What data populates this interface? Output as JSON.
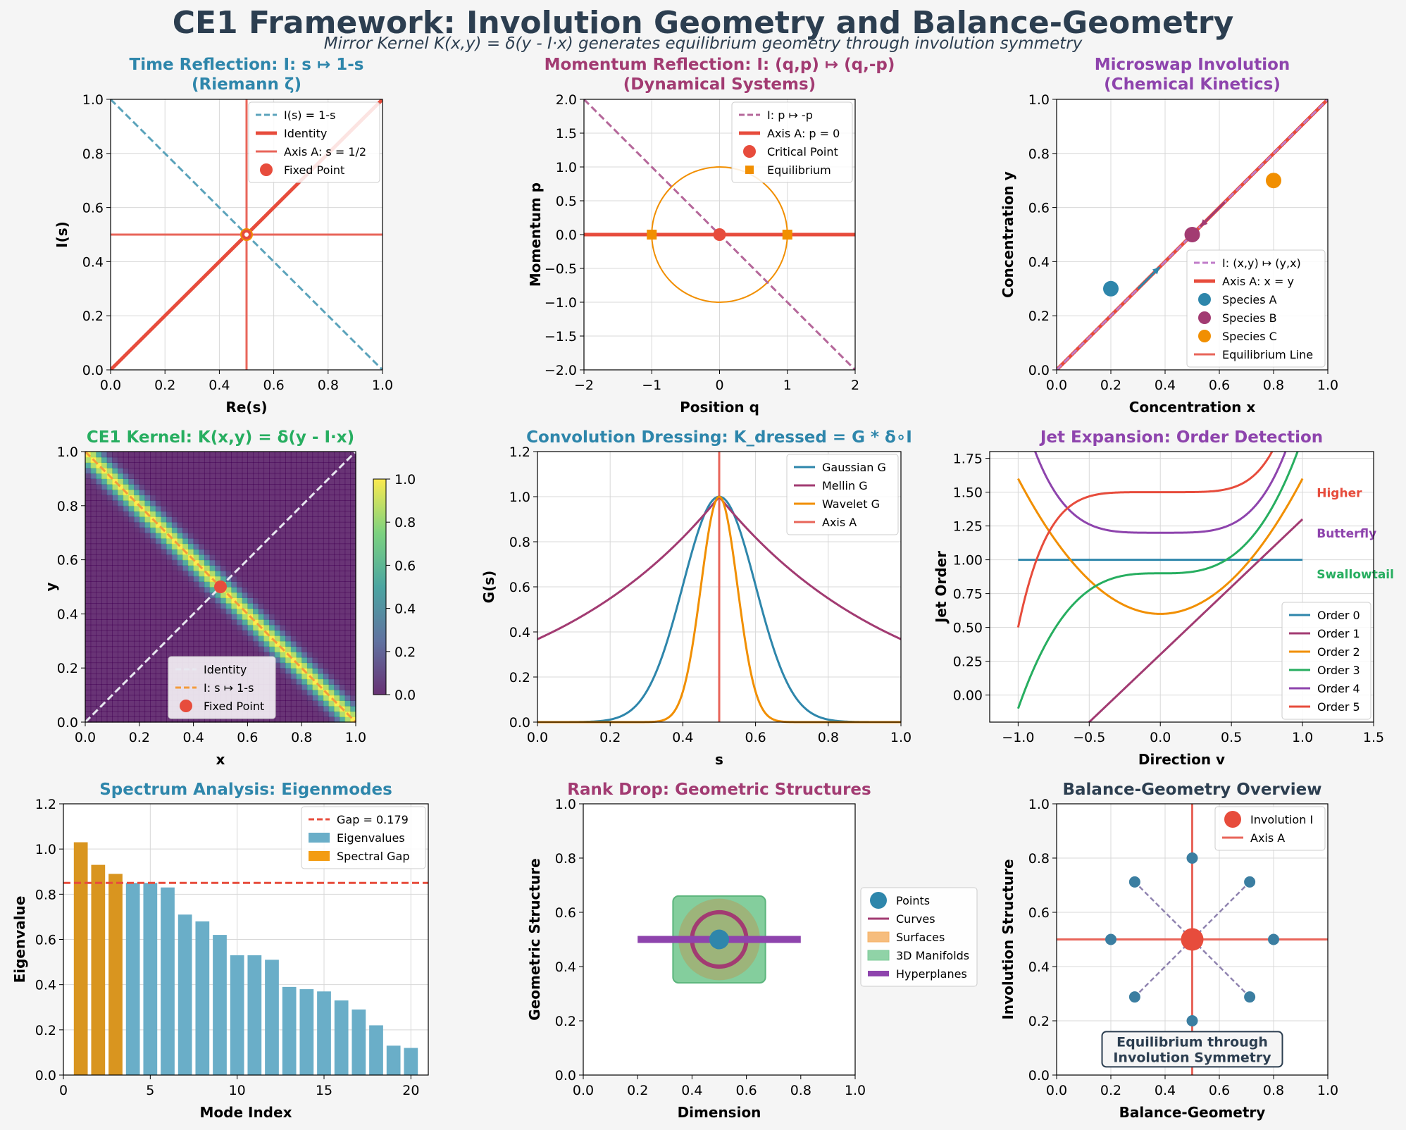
{
  "figure": {
    "title": "CE1 Framework: Involution Geometry and Balance-Geometry",
    "subtitle": "Mirror Kernel K(x,y) = δ(y - I·x) generates equilibrium geometry through involution symmetry",
    "title_color": "#2c3e50"
  },
  "chart_data": [
    {
      "id": "p1",
      "type": "line",
      "title": [
        "Time Reflection: I: s ↦ 1-s",
        "(Riemann ζ)"
      ],
      "title_color": "#2e86ab",
      "xlabel": "Re(s)",
      "ylabel": "I(s)",
      "xlim": [
        0,
        1
      ],
      "ylim": [
        0,
        1
      ],
      "xticks": [
        "0.0",
        "0.2",
        "0.4",
        "0.6",
        "0.8",
        "1.0"
      ],
      "yticks": [
        "0.0",
        "0.2",
        "0.4",
        "0.6",
        "0.8",
        "1.0"
      ],
      "grid": true,
      "legend_position": "upper right",
      "series": [
        {
          "name": "I(s) = 1-s",
          "x": [
            0,
            1
          ],
          "y": [
            1,
            0
          ],
          "color": "#5ba3bb",
          "style": "dashed"
        },
        {
          "name": "Identity",
          "x": [
            0,
            1
          ],
          "y": [
            0,
            1
          ],
          "color": "#e74c3c",
          "style": "solid-thick"
        },
        {
          "name": "Axis A: s = 1/2",
          "x": [
            0.5
          ],
          "y": [
            0.5
          ],
          "color": "#e8655a",
          "style": "crosshair"
        },
        {
          "name": "Fixed Point",
          "x": [
            0.5
          ],
          "y": [
            0.5
          ],
          "color": "#e74c3c",
          "style": "marker"
        }
      ]
    },
    {
      "id": "p2",
      "type": "line",
      "title": [
        "Momentum Reflection: I: (q,p) ↦ (q,-p)",
        "(Dynamical Systems)"
      ],
      "title_color": "#a23b72",
      "xlabel": "Position q",
      "ylabel": "Momentum p",
      "xlim": [
        -2,
        2
      ],
      "ylim": [
        -2,
        2
      ],
      "xticks": [
        "−2",
        "−1",
        "0",
        "1",
        "2"
      ],
      "yticks": [
        "−2.0",
        "−1.5",
        "−1.0",
        "−0.5",
        "0.0",
        "0.5",
        "1.0",
        "1.5",
        "2.0"
      ],
      "grid": true,
      "legend_position": "upper right",
      "series": [
        {
          "name": "I: p ↦ -p",
          "x": [
            -2,
            2
          ],
          "y": [
            2,
            -2
          ],
          "color": "#b5679a",
          "style": "dashed"
        },
        {
          "name": "Axis A: p = 0",
          "x": [
            -2,
            2
          ],
          "y": [
            0,
            0
          ],
          "color": "#e74c3c",
          "style": "solid-thick"
        },
        {
          "name": "Critical Point",
          "x": [
            0
          ],
          "y": [
            0
          ],
          "color": "#e74c3c",
          "style": "circle-marker"
        },
        {
          "name": "Equilibrium",
          "x": [
            -1,
            1
          ],
          "y": [
            0,
            0
          ],
          "color": "#f18f01",
          "style": "square-marker"
        }
      ],
      "circle": {
        "center": [
          0,
          0
        ],
        "radius": 1,
        "color": "#f18f01"
      }
    },
    {
      "id": "p3",
      "type": "scatter",
      "title": [
        "Microswap Involution",
        "(Chemical Kinetics)"
      ],
      "title_color": "#8e44ad",
      "xlabel": "Concentration x",
      "ylabel": "Concentration y",
      "xlim": [
        0,
        1
      ],
      "ylim": [
        0,
        1
      ],
      "xticks": [
        "0.0",
        "0.2",
        "0.4",
        "0.6",
        "0.8",
        "1.0"
      ],
      "yticks": [
        "0.0",
        "0.2",
        "0.4",
        "0.6",
        "0.8",
        "1.0"
      ],
      "grid": true,
      "legend_position": "lower right",
      "series": [
        {
          "name": "I: (x,y) ↦ (y,x)",
          "x": [
            0,
            1
          ],
          "y": [
            0,
            1
          ],
          "color": "#c07cc9",
          "style": "dashed"
        },
        {
          "name": "Axis A: x = y",
          "x": [
            0,
            1
          ],
          "y": [
            0,
            1
          ],
          "color": "#e74c3c",
          "style": "solid-thick"
        },
        {
          "name": "Species A",
          "x": [
            0.2
          ],
          "y": [
            0.3
          ],
          "color": "#2e86ab",
          "style": "marker"
        },
        {
          "name": "Species B",
          "x": [
            0.5
          ],
          "y": [
            0.5
          ],
          "color": "#a23b72",
          "style": "marker"
        },
        {
          "name": "Species C",
          "x": [
            0.8
          ],
          "y": [
            0.7
          ],
          "color": "#f18f01",
          "style": "marker"
        },
        {
          "name": "Equilibrium Line",
          "x": [
            0,
            1
          ],
          "y": [
            0,
            1
          ],
          "color": "#e8655a",
          "style": "solid"
        }
      ],
      "arrows": [
        {
          "from": [
            0.3,
            0.3
          ],
          "to": [
            0.38,
            0.38
          ],
          "color": "#2e86ab"
        },
        {
          "from": [
            0.62,
            0.62
          ],
          "to": [
            0.53,
            0.53
          ],
          "color": "#a23b72"
        }
      ]
    },
    {
      "id": "p4",
      "type": "heatmap",
      "title": [
        "CE1 Kernel: K(x,y) = δ(y - I·x)"
      ],
      "title_color": "#27ae60",
      "xlabel": "x",
      "ylabel": "y",
      "xlim": [
        0,
        1
      ],
      "ylim": [
        0,
        1
      ],
      "xticks": [
        "0.0",
        "0.2",
        "0.4",
        "0.6",
        "0.8",
        "1.0"
      ],
      "yticks": [
        "0.0",
        "0.2",
        "0.4",
        "0.6",
        "0.8",
        "1.0"
      ],
      "colorbar_ticks": [
        "0.0",
        "0.2",
        "0.4",
        "0.6",
        "0.8",
        "1.0"
      ],
      "kernel": "exp(-((y-(1-x))/0.05)^2)",
      "legend_position": "lower center",
      "series": [
        {
          "name": "Identity",
          "x": [
            0,
            1
          ],
          "y": [
            0,
            1
          ],
          "color": "#e8e8f0",
          "style": "dashed"
        },
        {
          "name": "I: s ↦ 1-s",
          "x": [
            0,
            1
          ],
          "y": [
            1,
            0
          ],
          "color": "#f39c3c",
          "style": "dashed"
        },
        {
          "name": "Fixed Point",
          "x": [
            0.5
          ],
          "y": [
            0.5
          ],
          "color": "#e74c3c",
          "style": "marker"
        }
      ]
    },
    {
      "id": "p5",
      "type": "line",
      "title": [
        "Convolution Dressing: K_dressed = G * δ∘I"
      ],
      "title_color": "#2e86ab",
      "xlabel": "s",
      "ylabel": "G(s)",
      "xlim": [
        0,
        1
      ],
      "ylim": [
        0,
        1.2
      ],
      "xticks": [
        "0.0",
        "0.2",
        "0.4",
        "0.6",
        "0.8",
        "1.0"
      ],
      "yticks": [
        "0.0",
        "0.2",
        "0.4",
        "0.6",
        "0.8",
        "1.0",
        "1.2"
      ],
      "grid": true,
      "legend_position": "upper right",
      "series": [
        {
          "name": "Gaussian G",
          "func": "gauss",
          "center": 0.5,
          "sigma": 0.1,
          "color": "#2e86ab"
        },
        {
          "name": "Mellin G",
          "func": "mellin",
          "center": 0.5,
          "k": 2.0,
          "color": "#a23b72"
        },
        {
          "name": "Wavelet G",
          "func": "gauss",
          "center": 0.5,
          "sigma": 0.05,
          "color": "#f18f01"
        },
        {
          "name": "Axis A",
          "x": [
            0.5,
            0.5
          ],
          "y": [
            0,
            1.2
          ],
          "color": "#e8655a"
        }
      ]
    },
    {
      "id": "p6",
      "type": "line",
      "title": [
        "Jet Expansion: Order Detection"
      ],
      "title_color": "#8e44ad",
      "xlabel": "Direction v",
      "ylabel": "Jet Order",
      "xlim": [
        -1.2,
        1.5
      ],
      "ylim": [
        -0.2,
        1.8
      ],
      "xticks": [
        "−1.0",
        "−0.5",
        "0.0",
        "0.5",
        "1.0",
        "1.5"
      ],
      "yticks": [
        "0.00",
        "0.25",
        "0.50",
        "0.75",
        "1.00",
        "1.25",
        "1.50",
        "1.75"
      ],
      "grid": true,
      "legend_position": "lower right",
      "series": [
        {
          "name": "Order 0",
          "func": "poly",
          "c": 1.0,
          "a": 0,
          "p": 0,
          "color": "#2e86ab"
        },
        {
          "name": "Order 1",
          "func": "linear",
          "c": 0.3,
          "a": 1.0,
          "color": "#a23b72"
        },
        {
          "name": "Order 2",
          "func": "poly",
          "c": 0.6,
          "a": 1.0,
          "p": 2,
          "color": "#f18f01"
        },
        {
          "name": "Order 3",
          "func": "poly",
          "c": 0.9,
          "a": 1.0,
          "p": 3,
          "color": "#27ae60"
        },
        {
          "name": "Order 4",
          "func": "poly",
          "c": 1.2,
          "a": 1.0,
          "p": 4,
          "color": "#8e44ad"
        },
        {
          "name": "Order 5",
          "func": "poly",
          "c": 1.5,
          "a": 1.0,
          "p": 5,
          "color": "#e74c3c"
        }
      ],
      "annotations": [
        {
          "text": "Higher",
          "x": 1.1,
          "y": 1.5,
          "color": "#e74c3c"
        },
        {
          "text": "Butterfly",
          "x": 1.1,
          "y": 1.2,
          "color": "#8e44ad"
        },
        {
          "text": "Swallowtail",
          "x": 1.1,
          "y": 0.9,
          "color": "#27ae60"
        }
      ]
    },
    {
      "id": "p7",
      "type": "bar",
      "title": [
        "Spectrum Analysis: Eigenmodes"
      ],
      "title_color": "#2e86ab",
      "xlabel": "Mode Index",
      "ylabel": "Eigenvalue",
      "xlim": [
        0,
        21
      ],
      "ylim": [
        0,
        1.2
      ],
      "xticks": [
        "0",
        "5",
        "10",
        "15",
        "20"
      ],
      "yticks": [
        "0.0",
        "0.2",
        "0.4",
        "0.6",
        "0.8",
        "1.0",
        "1.2"
      ],
      "grid": true,
      "legend_position": "upper right",
      "categories": [
        1,
        2,
        3,
        4,
        5,
        6,
        7,
        8,
        9,
        10,
        11,
        12,
        13,
        14,
        15,
        16,
        17,
        18,
        19,
        20
      ],
      "values": [
        1.03,
        0.93,
        0.89,
        0.85,
        0.85,
        0.83,
        0.71,
        0.68,
        0.62,
        0.53,
        0.53,
        0.51,
        0.39,
        0.38,
        0.37,
        0.33,
        0.29,
        0.22,
        0.13,
        0.12
      ],
      "gap_modes": 3,
      "gap_value": 0.85,
      "legend": [
        {
          "name": "Gap = 0.179",
          "color": "#e74c3c",
          "style": "dashed"
        },
        {
          "name": "Eigenvalues",
          "color": "#6aaec8",
          "style": "bar"
        },
        {
          "name": "Spectral Gap",
          "color": "#f39c12",
          "style": "bar"
        }
      ],
      "colors": {
        "eig": "#6aaec8",
        "gap": "#d9951f"
      }
    },
    {
      "id": "p8",
      "type": "scatter",
      "title": [
        "Rank Drop: Geometric Structures"
      ],
      "title_color": "#a23b72",
      "xlabel": "Dimension",
      "ylabel": "Geometric Structure",
      "xlim": [
        0,
        1
      ],
      "ylim": [
        0,
        1
      ],
      "xticks": [
        "0.0",
        "0.2",
        "0.4",
        "0.6",
        "0.8",
        "1.0"
      ],
      "yticks": [
        "0.0",
        "0.2",
        "0.4",
        "0.6",
        "0.8",
        "1.0"
      ],
      "legend_position": "center right outside",
      "legend": [
        {
          "name": "Points",
          "color": "#2e86ab",
          "style": "circle"
        },
        {
          "name": "Curves",
          "color": "#a23b72",
          "style": "line"
        },
        {
          "name": "Surfaces",
          "color": "#f5b266",
          "style": "patch"
        },
        {
          "name": "3D Manifolds",
          "color": "#7dcb98",
          "style": "patch"
        },
        {
          "name": "Hyperplanes",
          "color": "#8e44ad",
          "style": "thick"
        }
      ],
      "shapes": {
        "point": [
          0.5,
          0.5
        ],
        "curve_radius": 0.1,
        "surface_radius": 0.15,
        "manifold_box": [
          0.33,
          0.34,
          0.67,
          0.66
        ],
        "hyperplane": [
          [
            0.2,
            0.5
          ],
          [
            0.8,
            0.5
          ]
        ]
      }
    },
    {
      "id": "p9",
      "type": "scatter",
      "title": [
        "Balance-Geometry Overview"
      ],
      "title_color": "#2c3e50",
      "xlabel": "Balance-Geometry",
      "ylabel": "Involution Structure",
      "xlim": [
        0,
        1
      ],
      "ylim": [
        0,
        1
      ],
      "xticks": [
        "0.0",
        "0.2",
        "0.4",
        "0.6",
        "0.8",
        "1.0"
      ],
      "yticks": [
        "0.0",
        "0.2",
        "0.4",
        "0.6",
        "0.8",
        "1.0"
      ],
      "grid": true,
      "legend_position": "upper right",
      "legend": [
        {
          "name": "Involution I",
          "color": "#e74c3c",
          "style": "circle"
        },
        {
          "name": "Axis A",
          "color": "#e8655a",
          "style": "line"
        }
      ],
      "center": [
        0.5,
        0.5
      ],
      "points": [
        [
          0.8,
          0.5
        ],
        [
          0.712,
          0.712
        ],
        [
          0.5,
          0.8
        ],
        [
          0.288,
          0.712
        ],
        [
          0.2,
          0.5
        ],
        [
          0.288,
          0.288
        ],
        [
          0.5,
          0.2
        ],
        [
          0.712,
          0.288
        ]
      ],
      "annotation": [
        "Equilibrium through",
        "Involution Symmetry"
      ]
    }
  ]
}
